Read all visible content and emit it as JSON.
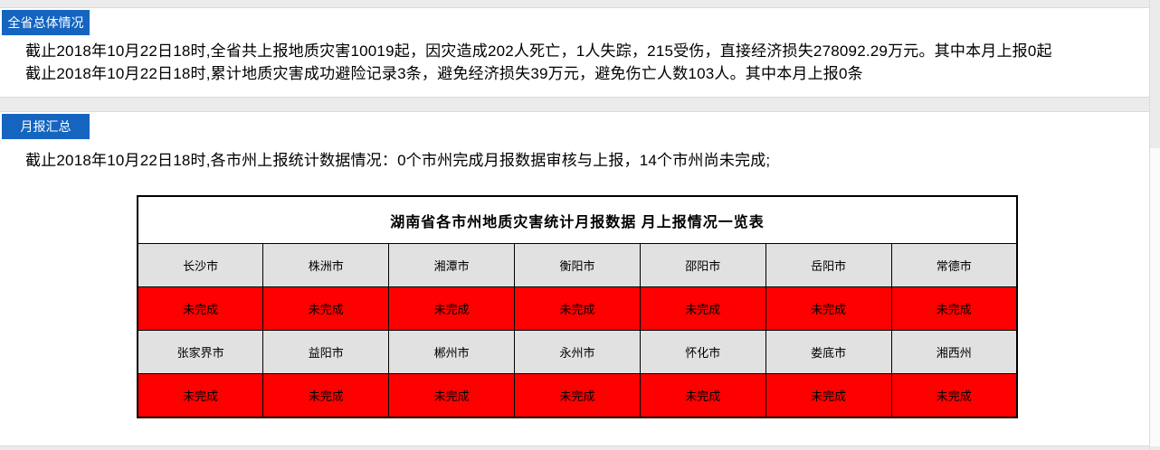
{
  "colors": {
    "badge_blue": "#1565c0",
    "status_red": "#ff0000",
    "cell_gray": "#e1e1e1",
    "band_gray": "#ebebeb"
  },
  "sections": [
    {
      "badge": "全省总体情况",
      "lines": [
        "截止2018年10月22日18时,全省共上报地质灾害10019起，因灾造成202人死亡，1人失踪，215受伤，直接经济损失278092.29万元。其中本月上报0起",
        "截止2018年10月22日18时,累计地质灾害成功避险记录3条，避免经济损失39万元，避免伤亡人数103人。其中本月上报0条"
      ]
    },
    {
      "badge": "月报汇总",
      "lines": [
        "截止2018年10月22日18时,各市州上报统计数据情况：0个市州完成月报数据审核与上报，14个市州尚未完成;"
      ]
    }
  ],
  "table": {
    "title": "湖南省各市州地质灾害统计月报数据 月上报情况一览表",
    "columns": 7,
    "rows": [
      {
        "type": "city",
        "cells": [
          "长沙市",
          "株洲市",
          "湘潭市",
          "衡阳市",
          "邵阳市",
          "岳阳市",
          "常德市"
        ]
      },
      {
        "type": "status",
        "cells": [
          "未完成",
          "未完成",
          "未完成",
          "未完成",
          "未完成",
          "未完成",
          "未完成"
        ]
      },
      {
        "type": "city",
        "cells": [
          "张家界市",
          "益阳市",
          "郴州市",
          "永州市",
          "怀化市",
          "娄底市",
          "湘西州"
        ]
      },
      {
        "type": "status",
        "cells": [
          "未完成",
          "未完成",
          "未完成",
          "未完成",
          "未完成",
          "未完成",
          "未完成"
        ]
      }
    ]
  }
}
